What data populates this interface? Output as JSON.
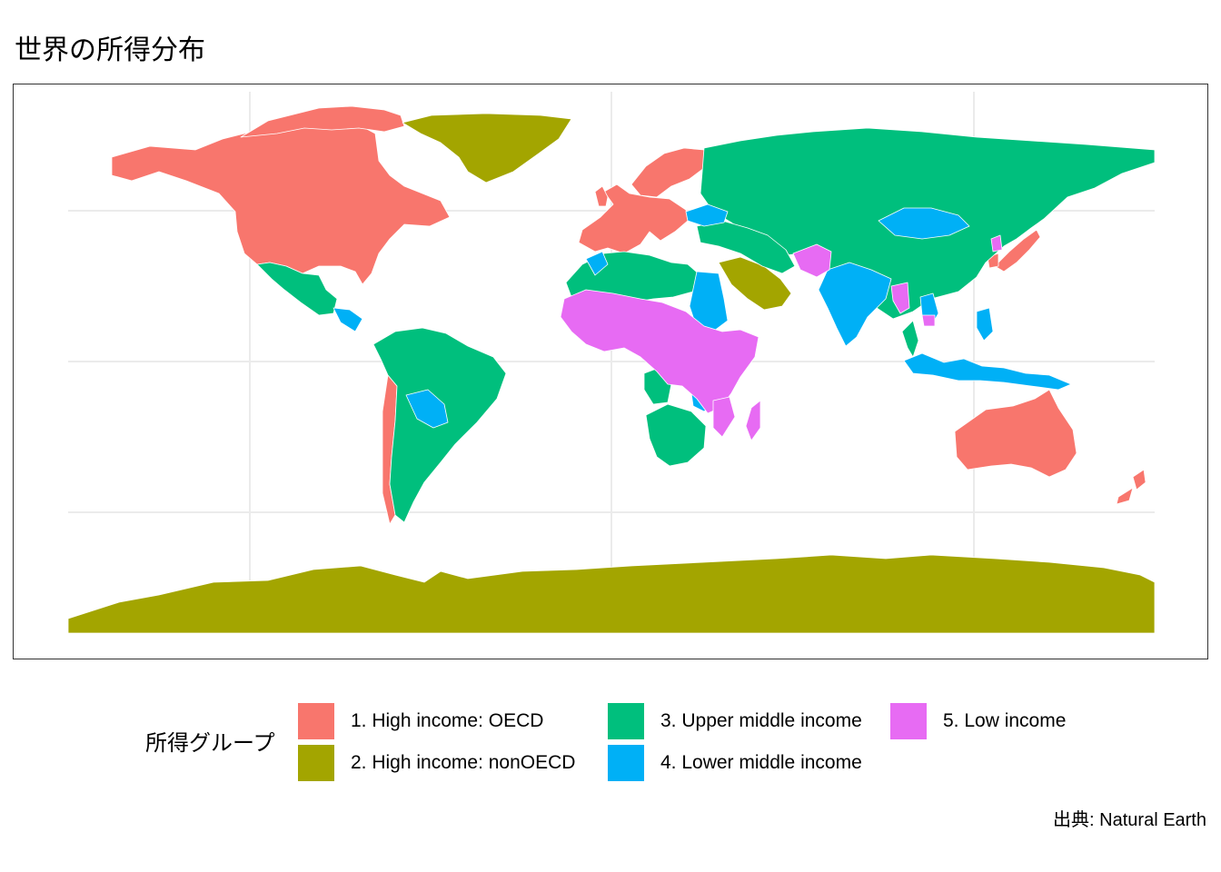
{
  "title": "世界の所得分布",
  "caption": "出典: Natural Earth",
  "legend": {
    "title": "所得グループ",
    "items": [
      {
        "label": "1. High income: OECD",
        "color": "#F8766D"
      },
      {
        "label": "2. High income: nonOECD",
        "color": "#A3A500"
      },
      {
        "label": "3. Upper middle income",
        "color": "#00BF7D"
      },
      {
        "label": "4. Lower middle income",
        "color": "#00B0F6"
      },
      {
        "label": "5. Low income",
        "color": "#E76BF3"
      }
    ]
  },
  "map": {
    "grid": true,
    "background": "#ffffff",
    "gridline_color": "#ebebeb",
    "border_color": "#ffffff"
  }
}
